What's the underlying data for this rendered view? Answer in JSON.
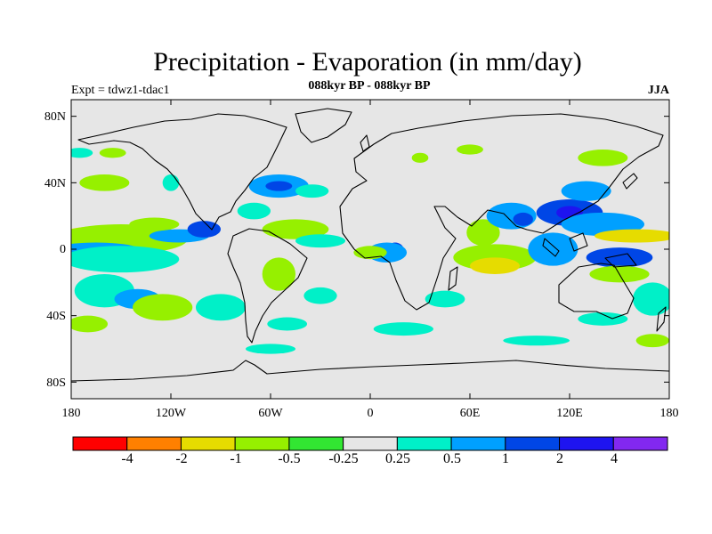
{
  "title": "Precipitation - Evaporation (in mm/day)",
  "subtitle": "088kyr BP - 088kyr BP",
  "experiment_label": "Expt = tdwz1-tdac1",
  "season": "JJA",
  "map": {
    "projection": "cylindrical-equidistant",
    "background_color": "#e6e6e6",
    "lat_labels": [
      "80N",
      "40N",
      "0",
      "40S",
      "80S"
    ],
    "lat_values": [
      80,
      40,
      0,
      -40,
      -80
    ],
    "lon_labels": [
      "180",
      "120W",
      "60W",
      "0",
      "60E",
      "120E",
      "180"
    ],
    "lon_values": [
      -180,
      -120,
      -60,
      0,
      60,
      120,
      180
    ]
  },
  "colorbar": {
    "colors": [
      "#ff0000",
      "#ff8000",
      "#e6dc00",
      "#96f000",
      "#32e632",
      "#e6e6e6",
      "#00f0c8",
      "#00a0ff",
      "#0046e6",
      "#1e14f0",
      "#8228f0"
    ],
    "labels": [
      "-4",
      "-2",
      "-1",
      "-0.5",
      "-0.25",
      "0.25",
      "0.5",
      "1",
      "2",
      "4"
    ]
  },
  "features": [
    {
      "lon": -165,
      "lat": 8,
      "rx": 16,
      "ry": 3,
      "color": "#ff8000"
    },
    {
      "lon": -160,
      "lat": 8,
      "rx": 28,
      "ry": 6,
      "color": "#e6dc00"
    },
    {
      "lon": -150,
      "lat": 6,
      "rx": 40,
      "ry": 9,
      "color": "#96f000"
    },
    {
      "lon": -165,
      "lat": -2,
      "rx": 18,
      "ry": 3,
      "color": "#0046e6"
    },
    {
      "lon": -165,
      "lat": -2,
      "rx": 30,
      "ry": 6,
      "color": "#00a0ff"
    },
    {
      "lon": -150,
      "lat": -6,
      "rx": 35,
      "ry": 8,
      "color": "#00f0c8"
    },
    {
      "lon": -115,
      "lat": 8,
      "rx": 18,
      "ry": 4,
      "color": "#00a0ff"
    },
    {
      "lon": -100,
      "lat": 12,
      "rx": 10,
      "ry": 5,
      "color": "#0046e6"
    },
    {
      "lon": -130,
      "lat": 15,
      "rx": 15,
      "ry": 4,
      "color": "#96f000"
    },
    {
      "lon": -160,
      "lat": -25,
      "rx": 18,
      "ry": 10,
      "color": "#00f0c8"
    },
    {
      "lon": -140,
      "lat": -30,
      "rx": 14,
      "ry": 6,
      "color": "#00a0ff"
    },
    {
      "lon": -125,
      "lat": -35,
      "rx": 18,
      "ry": 8,
      "color": "#96f000"
    },
    {
      "lon": -90,
      "lat": -35,
      "rx": 15,
      "ry": 8,
      "color": "#00f0c8"
    },
    {
      "lon": -170,
      "lat": -45,
      "rx": 12,
      "ry": 5,
      "color": "#96f000"
    },
    {
      "lon": -160,
      "lat": 40,
      "rx": 15,
      "ry": 5,
      "color": "#96f000"
    },
    {
      "lon": -175,
      "lat": 58,
      "rx": 8,
      "ry": 3,
      "color": "#00f0c8"
    },
    {
      "lon": -155,
      "lat": 58,
      "rx": 8,
      "ry": 3,
      "color": "#96f000"
    },
    {
      "lon": -120,
      "lat": 40,
      "rx": 5,
      "ry": 5,
      "color": "#00f0c8"
    },
    {
      "lon": -55,
      "lat": 38,
      "rx": 18,
      "ry": 7,
      "color": "#00a0ff"
    },
    {
      "lon": -55,
      "lat": 38,
      "rx": 8,
      "ry": 3,
      "color": "#0046e6"
    },
    {
      "lon": -35,
      "lat": 35,
      "rx": 10,
      "ry": 4,
      "color": "#00f0c8"
    },
    {
      "lon": -70,
      "lat": 23,
      "rx": 10,
      "ry": 5,
      "color": "#00f0c8"
    },
    {
      "lon": -45,
      "lat": 12,
      "rx": 20,
      "ry": 6,
      "color": "#96f000"
    },
    {
      "lon": -30,
      "lat": 5,
      "rx": 15,
      "ry": 4,
      "color": "#00f0c8"
    },
    {
      "lon": -55,
      "lat": -15,
      "rx": 10,
      "ry": 10,
      "color": "#96f000"
    },
    {
      "lon": -50,
      "lat": -45,
      "rx": 12,
      "ry": 4,
      "color": "#00f0c8"
    },
    {
      "lon": -60,
      "lat": -60,
      "rx": 15,
      "ry": 3,
      "color": "#00f0c8"
    },
    {
      "lon": -30,
      "lat": -28,
      "rx": 10,
      "ry": 5,
      "color": "#00f0c8"
    },
    {
      "lon": 15,
      "lat": 0,
      "rx": 5,
      "ry": 4,
      "color": "#0046e6"
    },
    {
      "lon": 10,
      "lat": -2,
      "rx": 12,
      "ry": 6,
      "color": "#00a0ff"
    },
    {
      "lon": 0,
      "lat": -2,
      "rx": 10,
      "ry": 4,
      "color": "#96f000"
    },
    {
      "lon": 20,
      "lat": -48,
      "rx": 18,
      "ry": 4,
      "color": "#00f0c8"
    },
    {
      "lon": 45,
      "lat": -30,
      "rx": 12,
      "ry": 5,
      "color": "#00f0c8"
    },
    {
      "lon": 75,
      "lat": -5,
      "rx": 25,
      "ry": 8,
      "color": "#96f000"
    },
    {
      "lon": 75,
      "lat": -10,
      "rx": 15,
      "ry": 5,
      "color": "#e6dc00"
    },
    {
      "lon": 68,
      "lat": 10,
      "rx": 10,
      "ry": 8,
      "color": "#96f000"
    },
    {
      "lon": 85,
      "lat": 20,
      "rx": 15,
      "ry": 8,
      "color": "#00a0ff"
    },
    {
      "lon": 92,
      "lat": 18,
      "rx": 6,
      "ry": 4,
      "color": "#0046e6"
    },
    {
      "lon": 120,
      "lat": 22,
      "rx": 20,
      "ry": 8,
      "color": "#0046e6"
    },
    {
      "lon": 120,
      "lat": 22,
      "rx": 8,
      "ry": 4,
      "color": "#1e14f0"
    },
    {
      "lon": 140,
      "lat": 15,
      "rx": 25,
      "ry": 7,
      "color": "#00a0ff"
    },
    {
      "lon": 130,
      "lat": 35,
      "rx": 15,
      "ry": 6,
      "color": "#00a0ff"
    },
    {
      "lon": 165,
      "lat": 8,
      "rx": 15,
      "ry": 2,
      "color": "#ff8000"
    },
    {
      "lon": 160,
      "lat": 8,
      "rx": 25,
      "ry": 4,
      "color": "#e6dc00"
    },
    {
      "lon": 110,
      "lat": 0,
      "rx": 15,
      "ry": 10,
      "color": "#00a0ff"
    },
    {
      "lon": 150,
      "lat": -5,
      "rx": 20,
      "ry": 6,
      "color": "#0046e6"
    },
    {
      "lon": 150,
      "lat": -15,
      "rx": 18,
      "ry": 5,
      "color": "#96f000"
    },
    {
      "lon": 170,
      "lat": -30,
      "rx": 12,
      "ry": 10,
      "color": "#00f0c8"
    },
    {
      "lon": 140,
      "lat": -42,
      "rx": 15,
      "ry": 4,
      "color": "#00f0c8"
    },
    {
      "lon": 100,
      "lat": -55,
      "rx": 20,
      "ry": 3,
      "color": "#00f0c8"
    },
    {
      "lon": 170,
      "lat": -55,
      "rx": 10,
      "ry": 4,
      "color": "#96f000"
    },
    {
      "lon": 60,
      "lat": 60,
      "rx": 8,
      "ry": 3,
      "color": "#96f000"
    },
    {
      "lon": 140,
      "lat": 55,
      "rx": 15,
      "ry": 5,
      "color": "#96f000"
    },
    {
      "lon": 30,
      "lat": 55,
      "rx": 5,
      "ry": 3,
      "color": "#96f000"
    }
  ]
}
